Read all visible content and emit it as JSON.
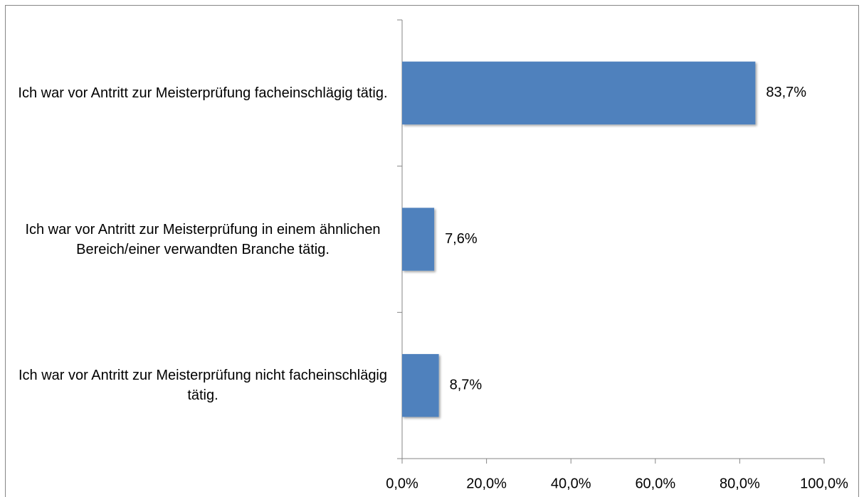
{
  "chart_data": {
    "type": "bar",
    "orientation": "horizontal",
    "categories": [
      "Ich war vor Antritt zur Meisterprüfung facheinschlägig tätig.",
      "Ich war vor Antritt zur Meisterprüfung in einem ähnlichen Bereich/einer verwandten Branche tätig.",
      "Ich war vor Antritt zur Meisterprüfung nicht facheinschlägig tätig."
    ],
    "values": [
      83.7,
      7.6,
      8.7
    ],
    "value_labels": [
      "83,7%",
      "7,6%",
      "8,7%"
    ],
    "color": "#4f81bd",
    "xlim": [
      0,
      100
    ],
    "xticks": [
      {
        "value": 0,
        "label": "0,0%"
      },
      {
        "value": 20,
        "label": "20,0%"
      },
      {
        "value": 40,
        "label": "40,0%"
      },
      {
        "value": 60,
        "label": "60,0%"
      },
      {
        "value": 80,
        "label": "80,0%"
      },
      {
        "value": 100,
        "label": "100,0%"
      }
    ],
    "grid": false
  }
}
